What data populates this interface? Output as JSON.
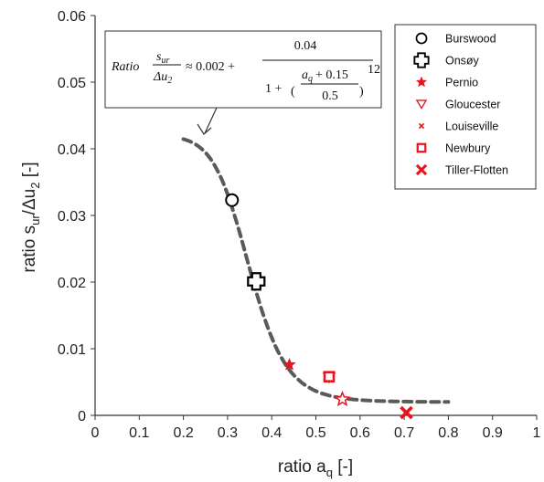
{
  "chart_data": {
    "type": "scatter",
    "title": "",
    "xlabel": "ratio a",
    "xlabel_sub": "q",
    "xlabel_unit": " [-]",
    "ylabel": "ratio s",
    "ylabel_sub1": "ur",
    "ylabel_mid": "/Δu",
    "ylabel_sub2": "2",
    "ylabel_unit": " [-]",
    "xlim": [
      0,
      1
    ],
    "ylim": [
      0,
      0.06
    ],
    "x_ticks": [
      "0",
      "0.1",
      "0.2",
      "0.3",
      "0.4",
      "0.5",
      "0.6",
      "0.7",
      "0.8",
      "0.9",
      "1"
    ],
    "y_ticks": [
      "0",
      "0.01",
      "0.02",
      "0.03",
      "0.04",
      "0.05",
      "0.06"
    ],
    "grid": false,
    "legend_position": "top-right",
    "series": [
      {
        "name": "Burswood",
        "marker": "circle",
        "color": "#000000",
        "x": [
          0.31
        ],
        "y": [
          0.0323
        ]
      },
      {
        "name": "Onsøy",
        "marker": "plus",
        "color": "#000000",
        "x": [
          0.365
        ],
        "y": [
          0.0201
        ]
      },
      {
        "name": "Pernio",
        "marker": "star-filled",
        "color": "#e8141b",
        "x": [
          0.44
        ],
        "y": [
          0.0076
        ]
      },
      {
        "name": "Gloucester",
        "marker": "triangle-down",
        "color": "#e8141b",
        "x": [
          0.53
        ],
        "y": [
          0.0057
        ]
      },
      {
        "name": "Louiseville",
        "marker": "star-open",
        "color": "#e8141b",
        "x": [
          0.56
        ],
        "y": [
          0.0024
        ]
      },
      {
        "name": "Newbury",
        "marker": "square",
        "color": "#e8141b",
        "x": [
          0.53
        ],
        "y": [
          0.0058
        ]
      },
      {
        "name": "Tiller-Flotten",
        "marker": "x",
        "color": "#e8141b",
        "x": [
          0.705
        ],
        "y": [
          0.0004
        ]
      }
    ],
    "legend_markers": [
      {
        "name": "Burswood",
        "marker": "circle",
        "color": "#000000"
      },
      {
        "name": "Onsøy",
        "marker": "plus",
        "color": "#000000"
      },
      {
        "name": "Pernio",
        "marker": "star-filled",
        "color": "#e8141b"
      },
      {
        "name": "Gloucester",
        "marker": "triangle-down",
        "color": "#e8141b"
      },
      {
        "name": "Louiseville",
        "marker": "small-x",
        "color": "#e8141b"
      },
      {
        "name": "Newbury",
        "marker": "square",
        "color": "#e8141b"
      },
      {
        "name": "Tiller-Flotten",
        "marker": "x",
        "color": "#e8141b"
      }
    ],
    "fit_curve": {
      "style": "dashed",
      "color": "#5a5a5a",
      "formula": "0.002 + 0.04 / (1 + ((a_q + 0.15)/0.5)^12)",
      "x_range": [
        0.2,
        0.8
      ]
    },
    "equation": {
      "prefix": "Ratio",
      "frac_num": "s",
      "frac_num_sub": "ur",
      "frac_den": "Δu",
      "frac_den_sub": "2",
      "approx": "≈ 0.002 +",
      "big_num": "0.04",
      "den_lead": "1 +",
      "inner_num": "a",
      "inner_num_sub": "q",
      "inner_num_tail": "+ 0.15",
      "inner_den": "0.5",
      "exponent": "12"
    }
  }
}
